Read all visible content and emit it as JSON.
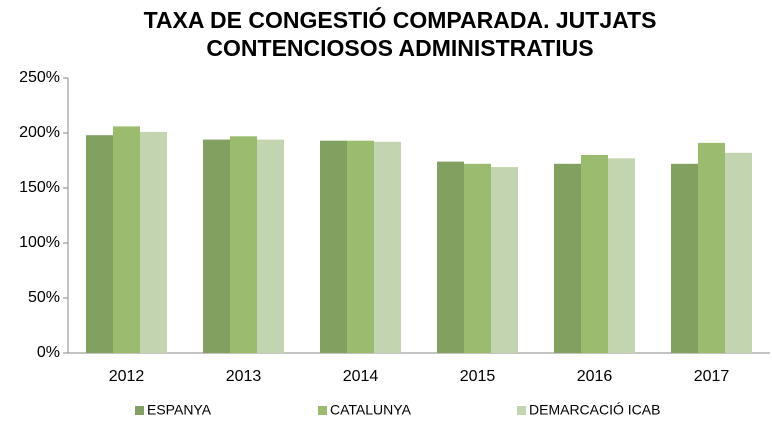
{
  "chart_data": {
    "type": "bar",
    "title": [
      "TAXA DE CONGESTIÓ COMPARADA. JUTJATS",
      "CONTENCIOSOS ADMINISTRATIUS"
    ],
    "categories": [
      "2012",
      "2013",
      "2014",
      "2015",
      "2016",
      "2017"
    ],
    "series": [
      {
        "name": "ESPANYA",
        "color": "#82a060",
        "values": [
          198,
          194,
          193,
          174,
          172,
          172
        ]
      },
      {
        "name": "CATALUNYA",
        "color": "#9bbb6e",
        "values": [
          206,
          197,
          193,
          172,
          180,
          191
        ]
      },
      {
        "name": "DEMARCACIÓ ICAB",
        "color": "#c3d5b0",
        "values": [
          201,
          194,
          192,
          169,
          177,
          182
        ]
      }
    ],
    "ylim": [
      0,
      250
    ],
    "yticks": [
      {
        "value": 0,
        "label": "0%"
      },
      {
        "value": 50,
        "label": "50%"
      },
      {
        "value": 100,
        "label": "100%"
      },
      {
        "value": 150,
        "label": "150%"
      },
      {
        "value": 200,
        "label": "200%"
      },
      {
        "value": 250,
        "label": "250%"
      }
    ],
    "legend": "bottom"
  }
}
